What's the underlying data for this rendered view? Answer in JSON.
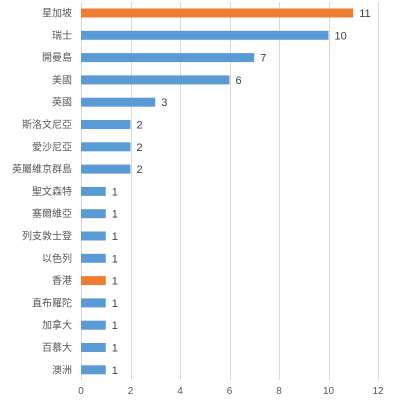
{
  "chart_data": {
    "type": "bar",
    "orientation": "horizontal",
    "categories": [
      "星加坡",
      "瑞士",
      "開曼島",
      "美國",
      "英國",
      "斯洛文尼亞",
      "愛沙尼亞",
      "英屬維京群島",
      "聖文森特",
      "塞爾維亞",
      "列支敦士登",
      "以色列",
      "香港",
      "直布羅陀",
      "加拿大",
      "百慕大",
      "澳洲"
    ],
    "values": [
      11,
      10,
      7,
      6,
      3,
      2,
      2,
      2,
      1,
      1,
      1,
      1,
      1,
      1,
      1,
      1,
      1
    ],
    "bar_colors": [
      "#ed7d31",
      "#5b9bd5",
      "#5b9bd5",
      "#5b9bd5",
      "#5b9bd5",
      "#5b9bd5",
      "#5b9bd5",
      "#5b9bd5",
      "#5b9bd5",
      "#5b9bd5",
      "#5b9bd5",
      "#5b9bd5",
      "#ed7d31",
      "#5b9bd5",
      "#5b9bd5",
      "#5b9bd5",
      "#5b9bd5"
    ],
    "xlim": [
      0,
      12
    ],
    "xticks": [
      0,
      2,
      4,
      6,
      8,
      10,
      12
    ],
    "grid": true,
    "data_labels": true,
    "title": "",
    "xlabel": "",
    "ylabel": ""
  }
}
